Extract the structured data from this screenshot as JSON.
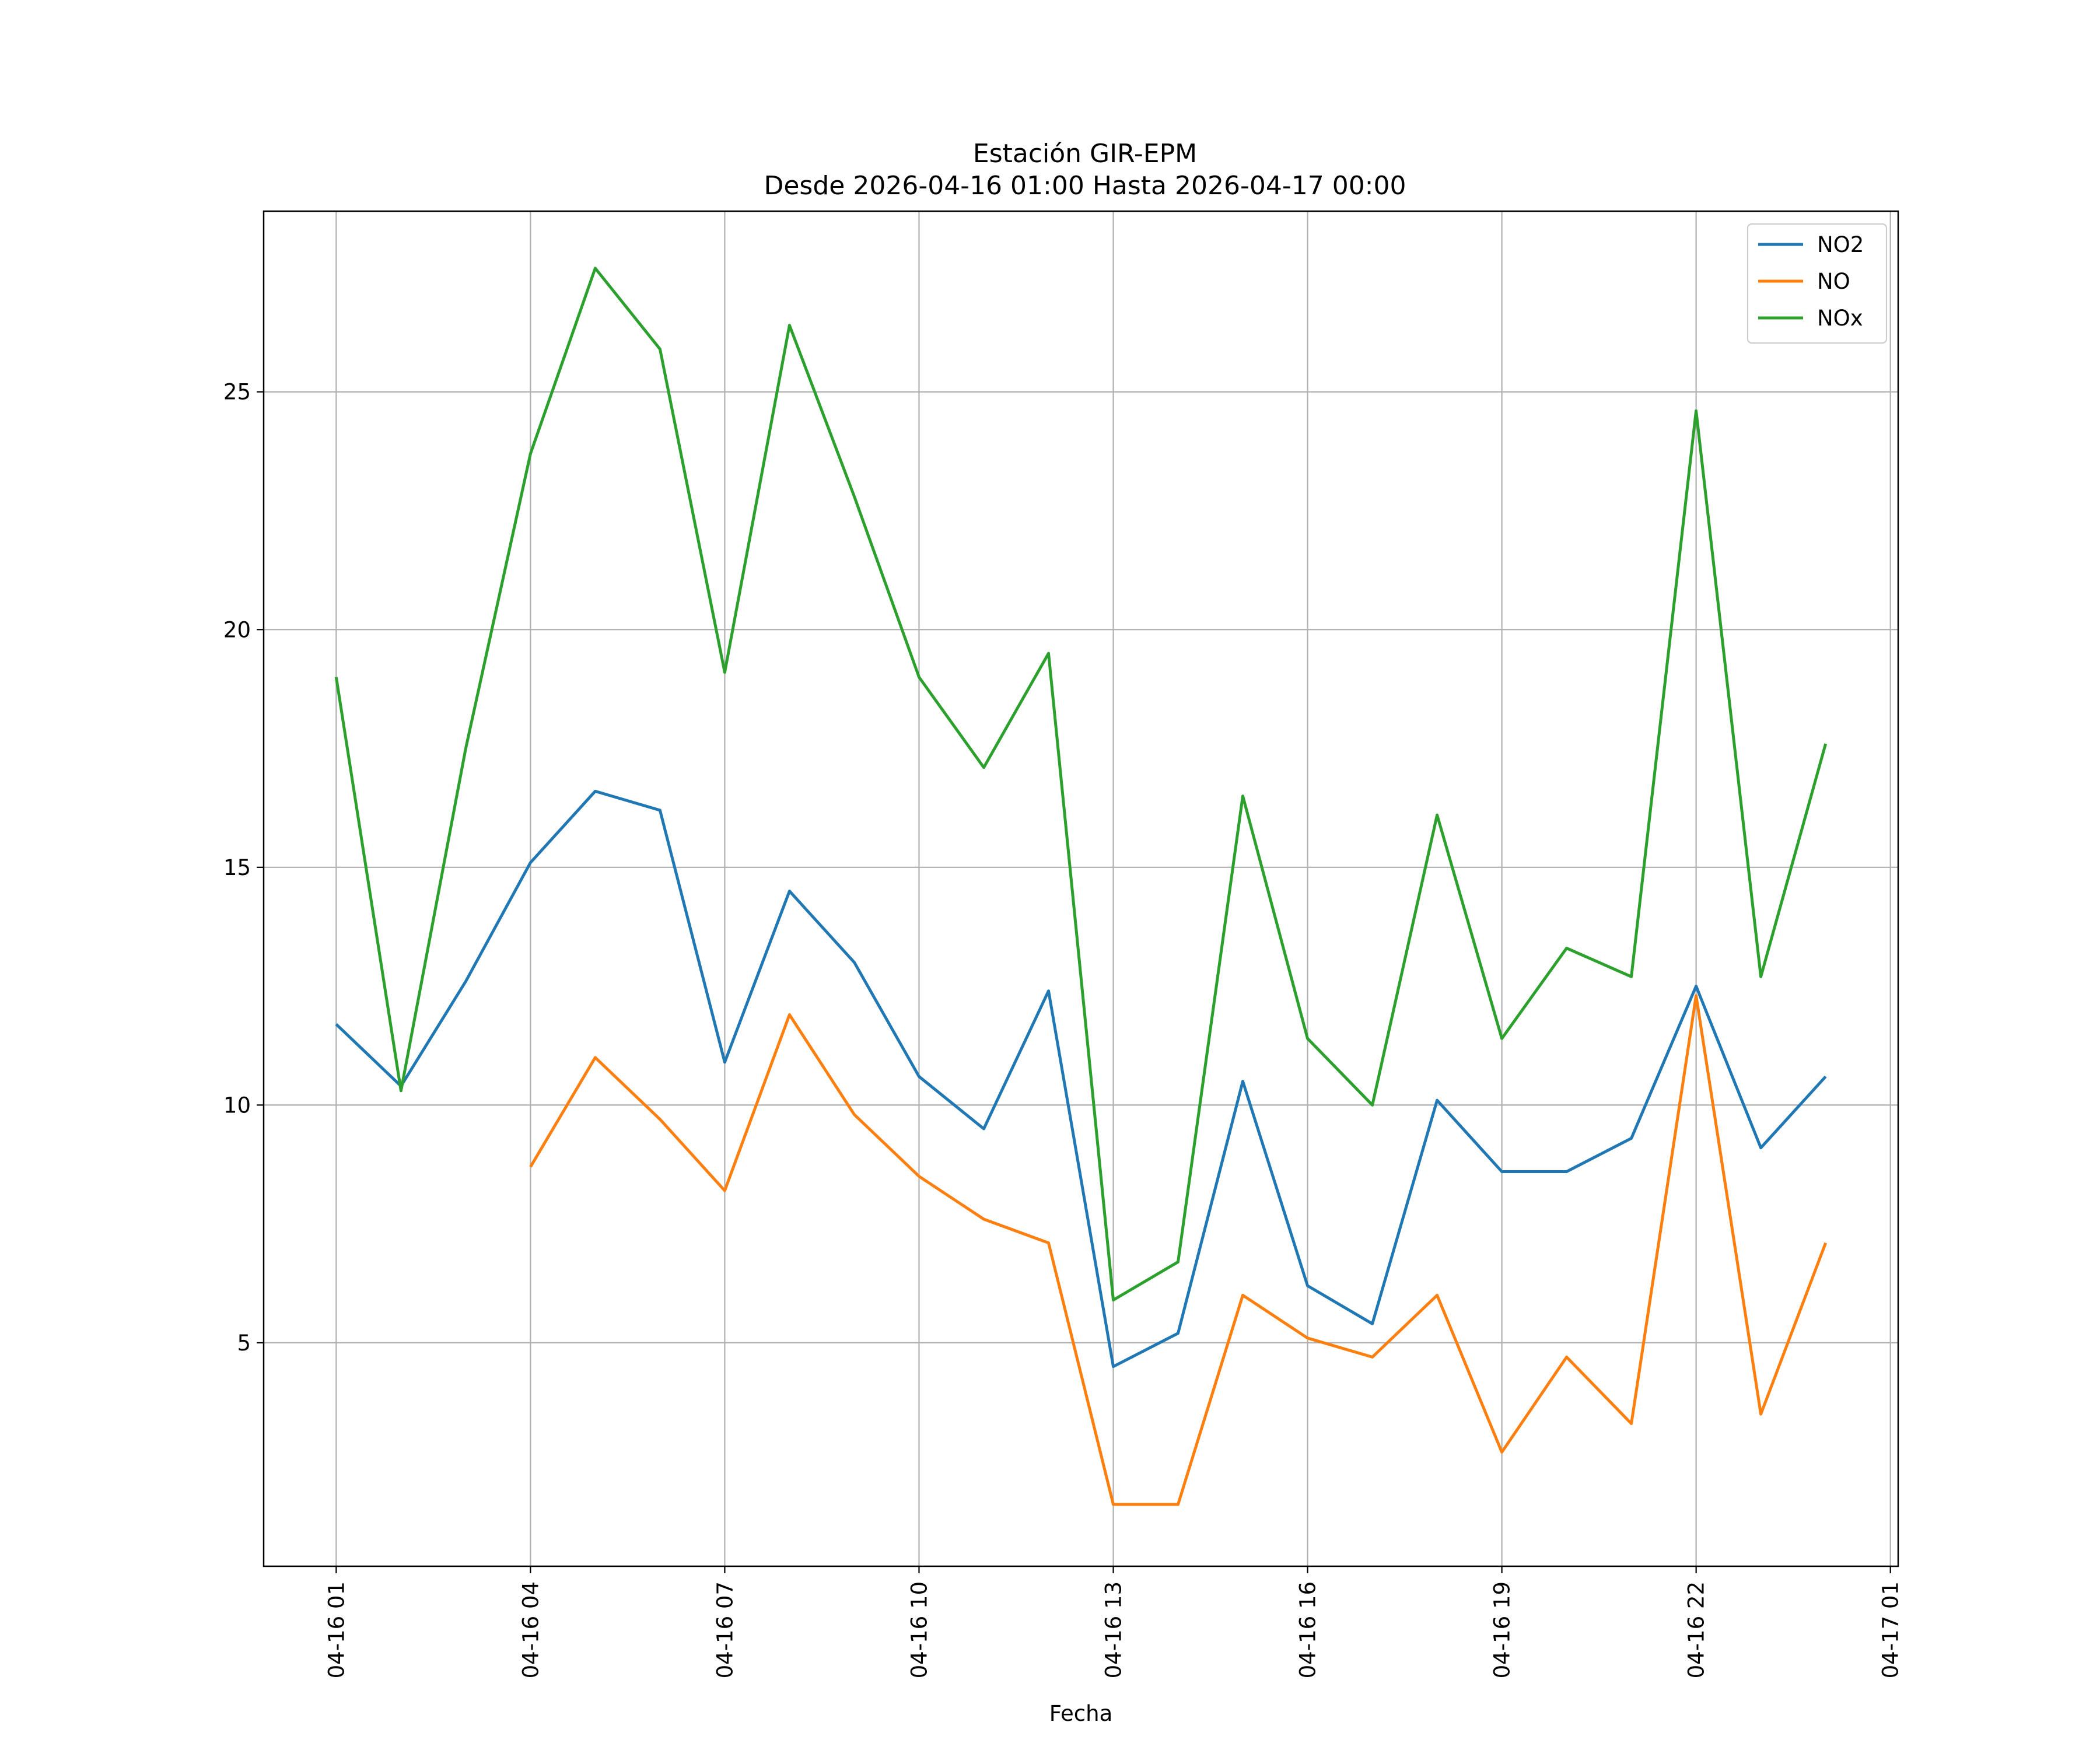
{
  "chart_data": {
    "type": "line",
    "title": "Estación GIR-EPM",
    "subtitle": "Desde 2026-04-16 01:00 Hasta 2026-04-17 00:00",
    "xlabel": "Fecha",
    "ylabel": "",
    "x_ticks": [
      "04-16 01",
      "04-16 04",
      "04-16 07",
      "04-16 10",
      "04-16 13",
      "04-16 16",
      "04-16 19",
      "04-16 22",
      "04-17 01"
    ],
    "y_ticks": [
      5,
      10,
      15,
      20,
      25
    ],
    "ylim": [
      0.3,
      28.8
    ],
    "grid": true,
    "legend_position": "top-right",
    "x": [
      "2026-04-16 01:00",
      "2026-04-16 02:00",
      "2026-04-16 03:00",
      "2026-04-16 04:00",
      "2026-04-16 05:00",
      "2026-04-16 06:00",
      "2026-04-16 07:00",
      "2026-04-16 08:00",
      "2026-04-16 09:00",
      "2026-04-16 10:00",
      "2026-04-16 11:00",
      "2026-04-16 12:00",
      "2026-04-16 13:00",
      "2026-04-16 14:00",
      "2026-04-16 15:00",
      "2026-04-16 16:00",
      "2026-04-16 17:00",
      "2026-04-16 18:00",
      "2026-04-16 19:00",
      "2026-04-16 20:00",
      "2026-04-16 21:00",
      "2026-04-16 22:00",
      "2026-04-16 23:00",
      "2026-04-17 00:00"
    ],
    "series": [
      {
        "name": "NO2",
        "color": "#1f77b4",
        "values": [
          11.7,
          10.4,
          12.6,
          15.1,
          16.6,
          16.2,
          10.9,
          14.5,
          13.0,
          10.6,
          9.5,
          12.4,
          4.5,
          5.2,
          10.5,
          6.2,
          5.4,
          10.1,
          8.6,
          8.6,
          9.3,
          12.5,
          9.1,
          10.6
        ]
      },
      {
        "name": "NO",
        "color": "#ff7f0e",
        "values": [
          null,
          null,
          null,
          8.7,
          11.0,
          9.7,
          8.2,
          11.9,
          9.8,
          8.5,
          7.6,
          7.1,
          1.6,
          1.6,
          6.0,
          5.1,
          4.7,
          6.0,
          2.7,
          4.7,
          3.3,
          12.3,
          3.5,
          7.1
        ]
      },
      {
        "name": "NOx",
        "color": "#2ca02c",
        "values": [
          19.0,
          10.3,
          17.5,
          23.7,
          27.6,
          25.9,
          19.1,
          26.4,
          22.8,
          19.0,
          17.1,
          19.5,
          5.9,
          6.7,
          16.5,
          11.4,
          10.0,
          16.1,
          11.4,
          13.3,
          12.7,
          24.6,
          12.7,
          17.6
        ]
      }
    ]
  }
}
